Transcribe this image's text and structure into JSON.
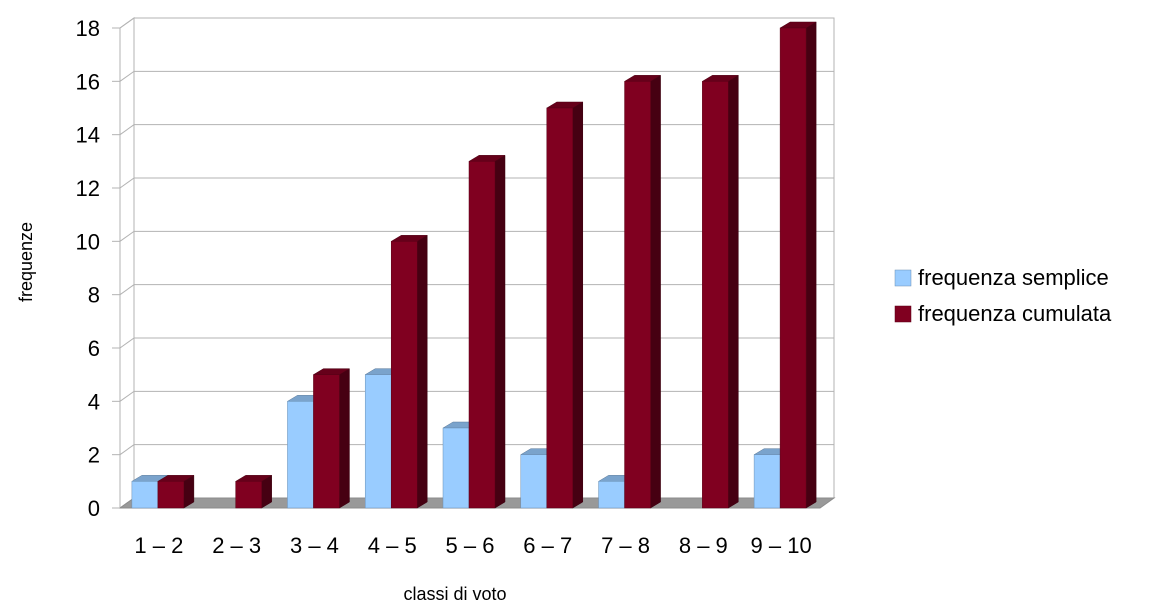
{
  "chart_data": {
    "type": "bar",
    "title": "",
    "xlabel": "classi di voto",
    "ylabel": "frequenze",
    "categories": [
      "1 – 2",
      "2 – 3",
      "3 – 4",
      "4 – 5",
      "5 – 6",
      "6 – 7",
      "7 – 8",
      "8 – 9",
      "9 – 10"
    ],
    "yticks": [
      "0",
      "2",
      "4",
      "6",
      "8",
      "10",
      "12",
      "14",
      "16",
      "18"
    ],
    "ylim": [
      0,
      18
    ],
    "grid": true,
    "legend_position": "right",
    "series": [
      {
        "name": "frequenza semplice",
        "values": [
          1,
          0,
          4,
          5,
          3,
          2,
          1,
          0,
          2
        ],
        "color": "#99ccff"
      },
      {
        "name": "frequenza cumulata",
        "values": [
          1,
          1,
          5,
          10,
          13,
          15,
          16,
          16,
          18
        ],
        "color": "#800020"
      }
    ]
  }
}
